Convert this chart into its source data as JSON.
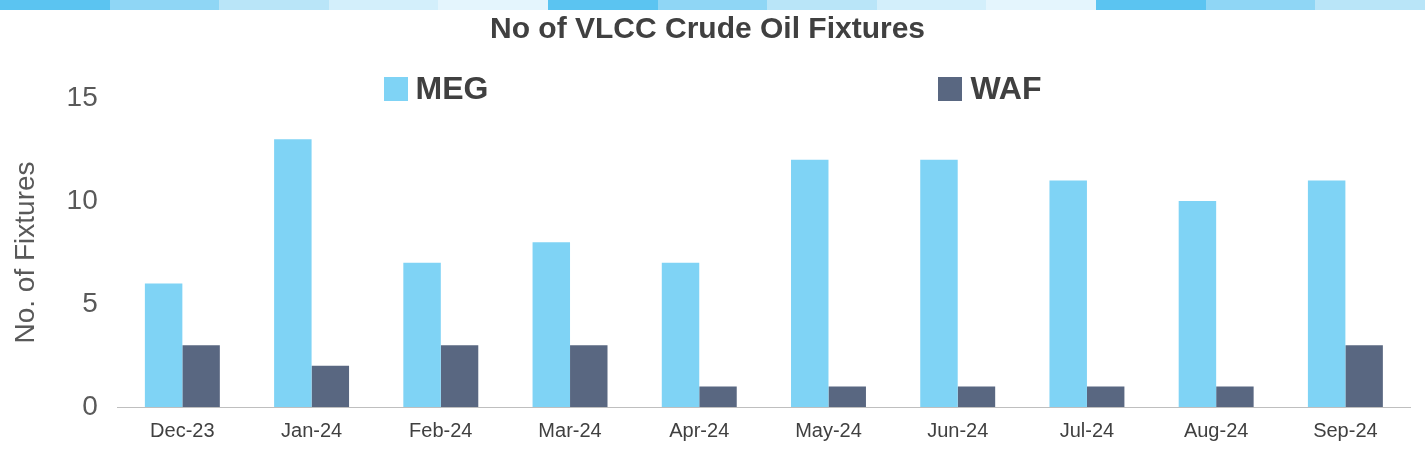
{
  "chart_data": {
    "type": "bar",
    "title": "No of VLCC Crude Oil Fixtures",
    "ylabel": "No. of Fixtures",
    "categories": [
      "Dec-23",
      "Jan-24",
      "Feb-24",
      "Mar-24",
      "Apr-24",
      "May-24",
      "Jun-24",
      "Jul-24",
      "Aug-24",
      "Sep-24"
    ],
    "series": [
      {
        "name": "MEG",
        "color": "#7fd3f5",
        "values": [
          6,
          13,
          7,
          8,
          7,
          12,
          12,
          11,
          10,
          11
        ]
      },
      {
        "name": "WAF",
        "color": "#596781",
        "values": [
          3,
          2,
          3,
          3,
          1,
          1,
          1,
          1,
          1,
          3
        ]
      }
    ],
    "ylim": [
      0,
      15
    ],
    "yticks": [
      0,
      5,
      10,
      15
    ],
    "grid": false,
    "legend": "top"
  }
}
